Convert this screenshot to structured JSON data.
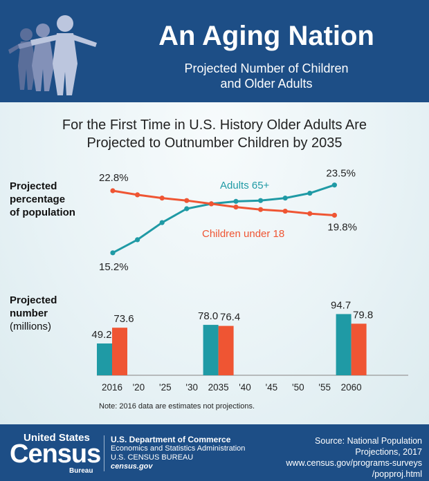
{
  "header": {
    "title": "An Aging Nation",
    "subtitle_line1": "Projected Number of Children",
    "subtitle_line2": "and Older Adults"
  },
  "headline_line1": "For the First Time in U.S. History Older Adults Are",
  "headline_line2": "Projected to Outnumber Children by 2035",
  "colors": {
    "header_bg": "#1d4e86",
    "adults": "#1f9aa5",
    "children": "#ef5533"
  },
  "chart_data": [
    {
      "type": "line",
      "title": "",
      "ylabel_line1": "Projected",
      "ylabel_line2": "percentage",
      "ylabel_line3": "of population",
      "x": [
        2016,
        2020,
        2025,
        2030,
        2035,
        2040,
        2045,
        2050,
        2055,
        2060
      ],
      "series": [
        {
          "name": "Adults 65+",
          "values": [
            15.2,
            16.8,
            18.9,
            20.6,
            21.2,
            21.5,
            21.6,
            21.9,
            22.5,
            23.5
          ]
        },
        {
          "name": "Children under 18",
          "values": [
            22.8,
            22.3,
            21.9,
            21.6,
            21.2,
            20.8,
            20.5,
            20.3,
            20.0,
            19.8
          ]
        }
      ],
      "annotations": {
        "children_start": "22.8%",
        "adults_start": "15.2%",
        "adults_end": "23.5%",
        "children_end": "19.8%"
      },
      "ylim": [
        14,
        25
      ]
    },
    {
      "type": "bar",
      "ylabel_line1": "Projected",
      "ylabel_line2": "number",
      "ylabel_line3": "(millions)",
      "x_ticks": [
        "2016",
        "'20",
        "'25",
        "'30",
        "2035",
        "'40",
        "'45",
        "'50",
        "'55",
        "2060"
      ],
      "categories": [
        "2016",
        "2035",
        "2060"
      ],
      "series": [
        {
          "name": "Adults 65+",
          "values": [
            49.2,
            78.0,
            94.7
          ]
        },
        {
          "name": "Children under 18",
          "values": [
            73.6,
            76.4,
            79.8
          ]
        }
      ],
      "value_labels": {
        "adults": [
          "49.2",
          "78.0",
          "94.7"
        ],
        "children": [
          "73.6",
          "76.4",
          "79.8"
        ]
      },
      "ylim": [
        0,
        100
      ]
    }
  ],
  "note": "Note: 2016 data are estimates not projections.",
  "footer": {
    "logo_line1": "United States",
    "logo_line2": "Census",
    "logo_line3": "Bureau",
    "dept_line1": "U.S. Department of Commerce",
    "dept_line2": "Economics and Statistics Administration",
    "dept_line3": "U.S. CENSUS BUREAU",
    "dept_line4": "census.gov",
    "source_line1": "Source: National Population",
    "source_line2": "Projections, 2017",
    "source_line3": "www.census.gov/programs-surveys",
    "source_line4": "/popproj.html"
  }
}
